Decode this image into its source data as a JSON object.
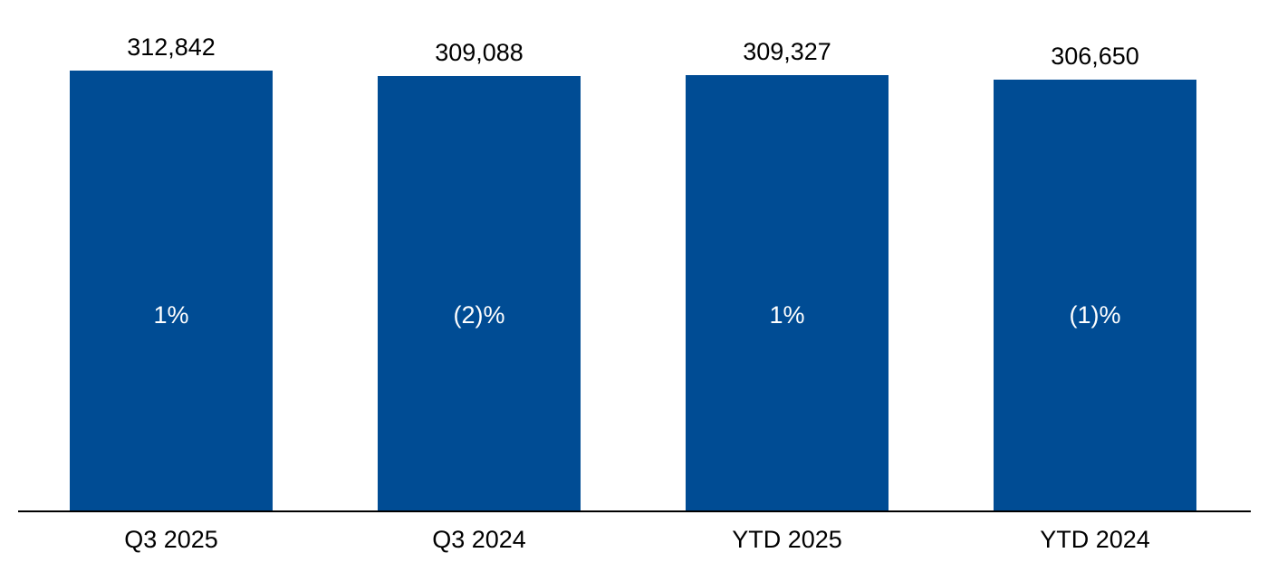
{
  "chart_data": {
    "type": "bar",
    "categories": [
      "Q3 2025",
      "Q3 2024",
      "YTD 2025",
      "YTD 2024"
    ],
    "values": [
      312842,
      309088,
      309327,
      306650
    ],
    "value_labels": [
      "312,842",
      "309,088",
      "309,327",
      "306,650"
    ],
    "inner_labels": [
      "1%",
      "(2)%",
      "1%",
      "(1)%"
    ],
    "title": "",
    "xlabel": "",
    "ylabel": "",
    "ylim": [
      0,
      312842
    ],
    "grid": false,
    "legend_position": "none",
    "bar_color": "#004C94",
    "inner_label_color": "#FFFFFF",
    "value_label_color": "#000000",
    "axis_line_color": "#000000",
    "background_color": "#FFFFFF"
  }
}
